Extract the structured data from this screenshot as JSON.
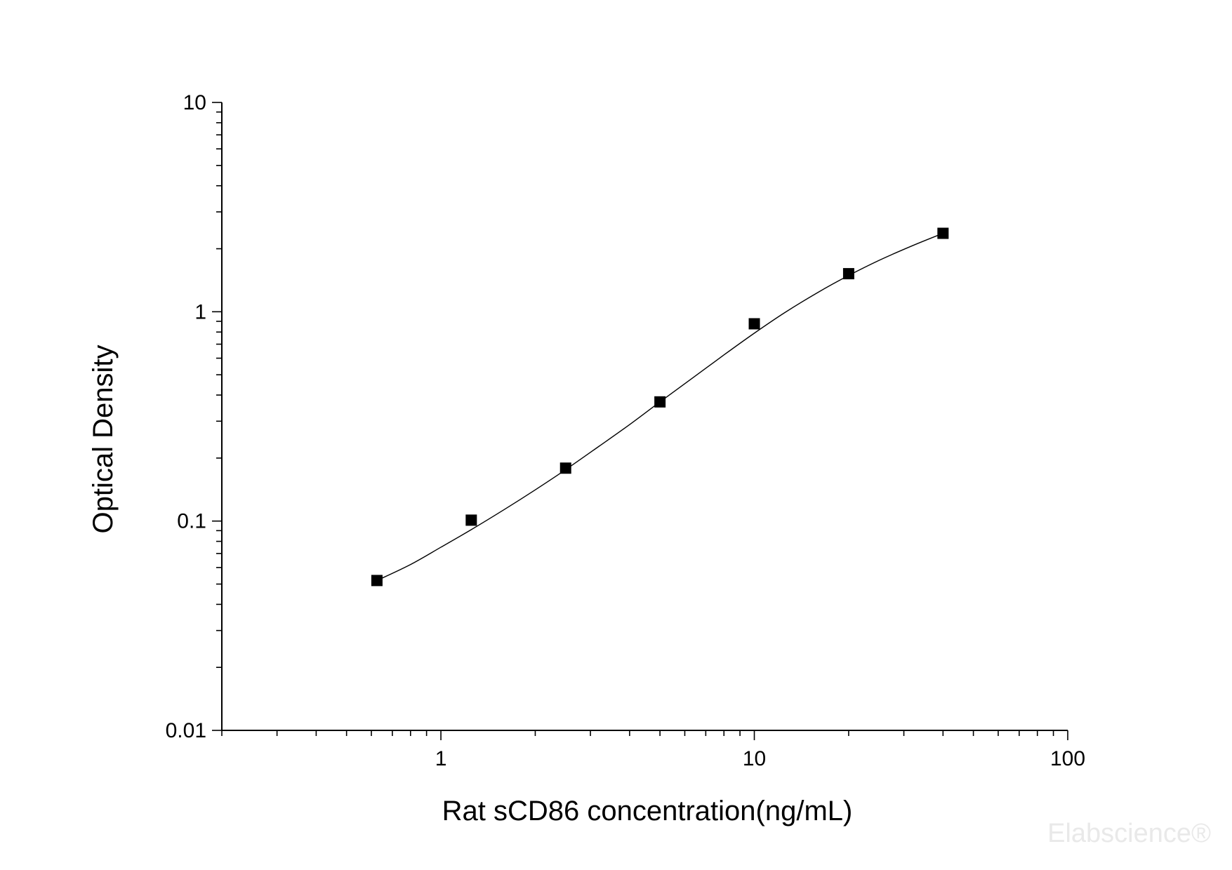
{
  "chart_data": {
    "type": "scatter",
    "title": "",
    "xlabel": "Rat sCD86 concentration(ng/mL)",
    "ylabel": "Optical Density",
    "x_scale": "log",
    "y_scale": "log",
    "xlim": [
      0.2,
      100
    ],
    "ylim": [
      0.01,
      10
    ],
    "x_tick_labels": [
      "1",
      "10",
      "100"
    ],
    "y_tick_labels": [
      "0.01",
      "0.1",
      "1",
      "10"
    ],
    "grid": false,
    "series": [
      {
        "marker": "square",
        "color": "#000000",
        "x": [
          0.625,
          1.25,
          2.5,
          5,
          10,
          20,
          40
        ],
        "y": [
          0.052,
          0.101,
          0.179,
          0.371,
          0.876,
          1.52,
          2.37
        ]
      }
    ],
    "fit_curve": {
      "color": "#000000",
      "x": [
        0.625,
        0.8,
        1,
        1.25,
        1.6,
        2,
        2.5,
        3.2,
        4,
        5,
        6.3,
        8,
        10,
        12.5,
        16,
        20,
        25,
        32,
        40
      ],
      "y": [
        0.052,
        0.062,
        0.075,
        0.091,
        0.114,
        0.141,
        0.176,
        0.228,
        0.289,
        0.371,
        0.478,
        0.622,
        0.79,
        0.99,
        1.24,
        1.49,
        1.76,
        2.07,
        2.37
      ]
    }
  },
  "watermark": "Elabscience®"
}
